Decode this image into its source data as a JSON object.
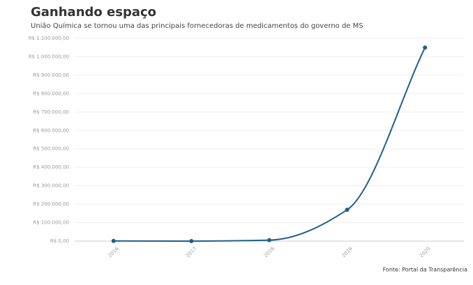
{
  "chart_data": {
    "type": "line",
    "title": "Ganhando espaço",
    "subtitle": "União Química se tornou uma das principais fornecedoras de medicamentos do governo de MS",
    "source": "Fonte: Portal da Transparência",
    "categories": [
      "2016",
      "2017",
      "2018",
      "2019",
      "2020"
    ],
    "values": [
      1000,
      0,
      5000,
      170000,
      1050000
    ],
    "color": "#1f5f8b",
    "ylim": [
      0,
      1100000
    ],
    "yticks": [
      {
        "value": 0,
        "label": "R$ 0,00"
      },
      {
        "value": 100000,
        "label": "R$ 100.000,00"
      },
      {
        "value": 200000,
        "label": "R$ 200.000,00"
      },
      {
        "value": 300000,
        "label": "R$ 300.000,00"
      },
      {
        "value": 400000,
        "label": "R$ 400.000,00"
      },
      {
        "value": 500000,
        "label": "R$ 500.000,00"
      },
      {
        "value": 600000,
        "label": "R$ 600.000,00"
      },
      {
        "value": 700000,
        "label": "R$ 700.000,00"
      },
      {
        "value": 800000,
        "label": "R$ 800.000,00"
      },
      {
        "value": 900000,
        "label": "R$ 900.000,00"
      },
      {
        "value": 1000000,
        "label": "R$ 1.000.000,00"
      },
      {
        "value": 1100000,
        "label": "R$ 1.100.000,00"
      }
    ],
    "grid": true
  }
}
